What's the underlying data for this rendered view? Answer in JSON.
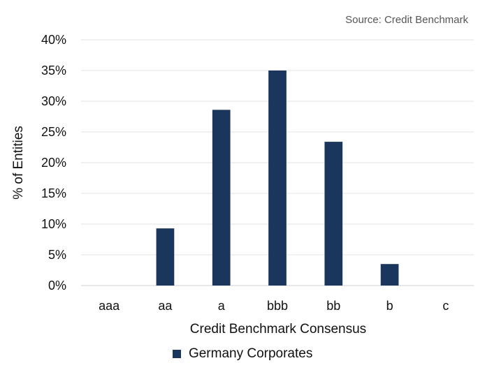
{
  "source": "Source: Credit Benchmark",
  "chart_data": {
    "type": "bar",
    "categories": [
      "aaa",
      "aa",
      "a",
      "bbb",
      "bb",
      "b",
      "c"
    ],
    "series": [
      {
        "name": "Germany Corporates",
        "values": [
          0,
          9.3,
          28.6,
          35.0,
          23.4,
          3.5,
          0
        ],
        "color": "#1b365d"
      }
    ],
    "xlabel": "Credit Benchmark Consensus",
    "ylabel": "% of Entities",
    "ylim": [
      0,
      40
    ],
    "yticks": [
      "0%",
      "5%",
      "10%",
      "15%",
      "20%",
      "25%",
      "30%",
      "35%",
      "40%"
    ],
    "grid": true,
    "legend_position": "bottom"
  }
}
